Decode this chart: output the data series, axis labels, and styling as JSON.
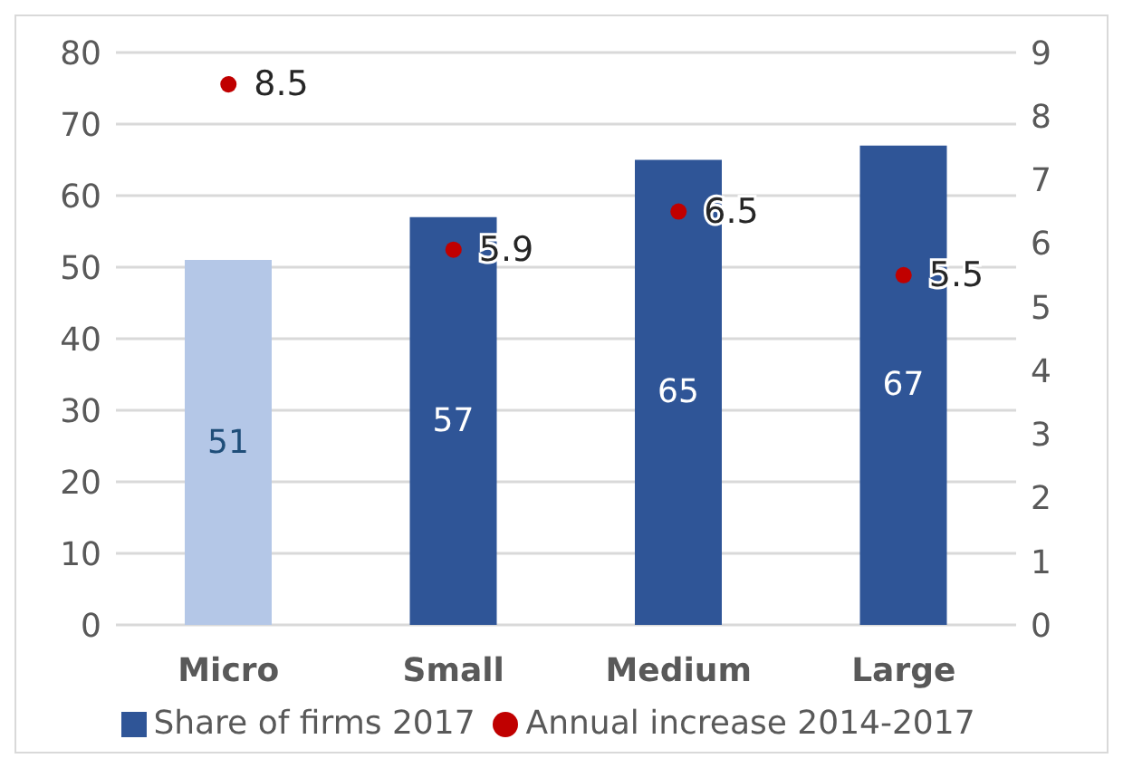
{
  "chart_data": {
    "type": "bar",
    "categories": [
      "Micro",
      "Small",
      "Medium",
      "Large"
    ],
    "series": [
      {
        "name": "Share of firms 2017",
        "color": "#2f5597",
        "colors": [
          "#b4c7e7",
          "#2f5597",
          "#2f5597",
          "#2f5597"
        ],
        "values": [
          51,
          57,
          65,
          67
        ]
      },
      {
        "name": "Annual increase 2014-2017",
        "type": "scatter",
        "axis": "y2",
        "color": "#c00000",
        "x": [
          "Micro",
          "Small",
          "Medium",
          "Large"
        ],
        "values": [
          8.5,
          5.9,
          6.5,
          5.5
        ]
      }
    ],
    "ylim": [
      0,
      80
    ],
    "yticks": [
      0,
      10,
      20,
      30,
      40,
      50,
      60,
      70,
      80
    ],
    "y2lim": [
      0,
      9
    ],
    "y2ticks": [
      0,
      1,
      2,
      3,
      4,
      5,
      6,
      7,
      8,
      9
    ],
    "grid": "y",
    "legend": "bottom",
    "data_labels": true,
    "marker": "circle"
  }
}
